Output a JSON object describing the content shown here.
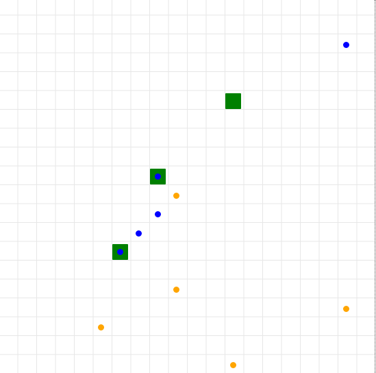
{
  "board": {
    "grid_color": "#e7e7e7",
    "background": "#ffffff",
    "edge_color": "#555555"
  },
  "colors": {
    "green": "#008000",
    "blue": "#0000ff",
    "orange": "#ffa500"
  },
  "pieces": {
    "green_squares": [
      {
        "col": 12,
        "row": 5
      },
      {
        "col": 8,
        "row": 9
      },
      {
        "col": 6,
        "row": 13
      }
    ],
    "blue_dots": [
      {
        "col": 18,
        "row": 2
      },
      {
        "col": 8,
        "row": 9
      },
      {
        "col": 8,
        "row": 11
      },
      {
        "col": 7,
        "row": 12
      },
      {
        "col": 6,
        "row": 13
      }
    ],
    "orange_dots": [
      {
        "col": 9,
        "row": 10
      },
      {
        "col": 9,
        "row": 15
      },
      {
        "col": 18,
        "row": 16
      },
      {
        "col": 5,
        "row": 17
      },
      {
        "col": 12,
        "row": 19
      }
    ]
  }
}
